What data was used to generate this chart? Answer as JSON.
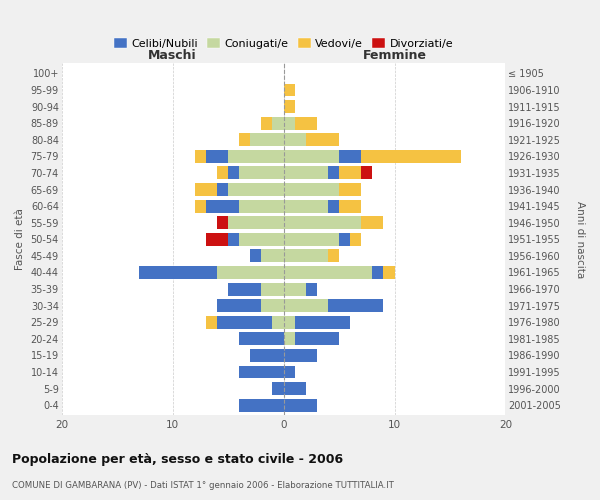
{
  "age_groups": [
    "0-4",
    "5-9",
    "10-14",
    "15-19",
    "20-24",
    "25-29",
    "30-34",
    "35-39",
    "40-44",
    "45-49",
    "50-54",
    "55-59",
    "60-64",
    "65-69",
    "70-74",
    "75-79",
    "80-84",
    "85-89",
    "90-94",
    "95-99",
    "100+"
  ],
  "birth_years": [
    "2001-2005",
    "1996-2000",
    "1991-1995",
    "1986-1990",
    "1981-1985",
    "1976-1980",
    "1971-1975",
    "1966-1970",
    "1961-1965",
    "1956-1960",
    "1951-1955",
    "1946-1950",
    "1941-1945",
    "1936-1940",
    "1931-1935",
    "1926-1930",
    "1921-1925",
    "1916-1920",
    "1911-1915",
    "1906-1910",
    "≤ 1905"
  ],
  "maschi": {
    "celibi": [
      4,
      1,
      4,
      3,
      4,
      5,
      4,
      3,
      7,
      1,
      1,
      0,
      3,
      1,
      1,
      2,
      0,
      0,
      0,
      0,
      0
    ],
    "coniugati": [
      0,
      0,
      0,
      0,
      0,
      1,
      2,
      2,
      6,
      2,
      4,
      5,
      4,
      5,
      4,
      5,
      3,
      1,
      0,
      0,
      0
    ],
    "vedovi": [
      0,
      0,
      0,
      0,
      0,
      1,
      0,
      0,
      0,
      0,
      0,
      0,
      1,
      2,
      1,
      1,
      1,
      1,
      0,
      0,
      0
    ],
    "divorziati": [
      0,
      0,
      0,
      0,
      0,
      0,
      0,
      0,
      0,
      0,
      2,
      1,
      0,
      0,
      0,
      0,
      0,
      0,
      0,
      0,
      0
    ]
  },
  "femmine": {
    "nubili": [
      3,
      2,
      1,
      3,
      4,
      5,
      5,
      1,
      1,
      0,
      1,
      0,
      1,
      0,
      1,
      2,
      0,
      0,
      0,
      0,
      0
    ],
    "coniugate": [
      0,
      0,
      0,
      0,
      1,
      1,
      4,
      2,
      8,
      4,
      5,
      7,
      4,
      5,
      4,
      5,
      2,
      1,
      0,
      0,
      0
    ],
    "vedove": [
      0,
      0,
      0,
      0,
      0,
      0,
      0,
      0,
      1,
      1,
      1,
      2,
      2,
      2,
      2,
      9,
      3,
      2,
      1,
      1,
      0
    ],
    "divorziate": [
      0,
      0,
      0,
      0,
      0,
      0,
      0,
      0,
      0,
      0,
      0,
      0,
      0,
      0,
      1,
      0,
      0,
      0,
      0,
      0,
      0
    ]
  },
  "colors": {
    "celibi_nubili": "#4472c4",
    "coniugati": "#c5d8a0",
    "vedovi": "#f5c242",
    "divorziati": "#cc1111"
  },
  "title": "Popolazione per età, sesso e stato civile - 2006",
  "subtitle": "COMUNE DI GAMBARANA (PV) - Dati ISTAT 1° gennaio 2006 - Elaborazione TUTTITALIA.IT",
  "ylabel_left": "Fasce di età",
  "ylabel_right": "Anni di nascita",
  "xlabel_maschi": "Maschi",
  "xlabel_femmine": "Femmine",
  "xlim": 20,
  "legend_labels": [
    "Celibi/Nubili",
    "Coniugati/e",
    "Vedovi/e",
    "Divorziati/e"
  ],
  "bg_color": "#f0f0f0",
  "plot_bg_color": "#ffffff"
}
